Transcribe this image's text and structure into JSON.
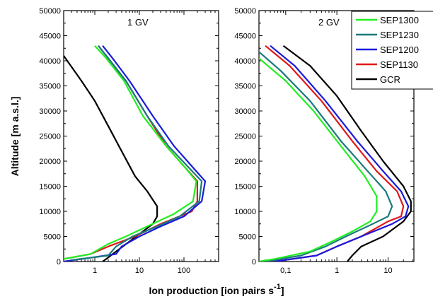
{
  "chart_data": {
    "type": "line",
    "xlabel": "Ion production [ion pairs s",
    "xlabel_sup": "-1",
    "xlabel_end": "]",
    "ylabel": "Altitude [m a.s.l.]",
    "ylim": [
      0,
      50000
    ],
    "yticks": [
      "0",
      "5000",
      "10000",
      "15000",
      "20000",
      "25000",
      "30000",
      "35000",
      "40000",
      "45000",
      "50000"
    ],
    "legend_position": "top-right",
    "colors": {
      "SEP1300": "#22ee22",
      "SEP1230": "#1a7a7a",
      "SEP1200": "#1a1adc",
      "SEP1130": "#e01818",
      "GCR": "#000000"
    },
    "series_names": [
      "SEP1300",
      "SEP1230",
      "SEP1200",
      "SEP1130",
      "GCR"
    ],
    "panels": [
      {
        "label": "1 GV",
        "x_scale": "log",
        "xlim": [
          0.2,
          600
        ],
        "xticks": [
          "1",
          "10",
          "100"
        ],
        "series": [
          {
            "name": "GCR",
            "points": [
              [
                0.2,
                41000
              ],
              [
                0.5,
                36000
              ],
              [
                1,
                32000
              ],
              [
                2,
                27000
              ],
              [
                4,
                22000
              ],
              [
                8,
                17000
              ],
              [
                15,
                14000
              ],
              [
                25,
                11000
              ],
              [
                25,
                9000
              ],
              [
                20,
                7500
              ],
              [
                12,
                6000
              ],
              [
                6,
                4000
              ],
              [
                3,
                2000
              ],
              [
                2,
                800
              ],
              [
                1.5,
                0
              ]
            ]
          },
          {
            "name": "SEP1130",
            "points": [
              [
                1.2,
                43000
              ],
              [
                2,
                40500
              ],
              [
                5,
                36000
              ],
              [
                15,
                29000
              ],
              [
                40,
                23000
              ],
              [
                100,
                19000
              ],
              [
                200,
                16000
              ],
              [
                200,
                12000
              ],
              [
                150,
                10000
              ],
              [
                30,
                7500
              ],
              [
                8,
                5000
              ],
              [
                2,
                3000
              ],
              [
                0.8,
                1500
              ],
              [
                0.2,
                500
              ]
            ]
          },
          {
            "name": "SEP1200",
            "points": [
              [
                1.5,
                43000
              ],
              [
                2.5,
                40500
              ],
              [
                6,
                36000
              ],
              [
                20,
                29000
              ],
              [
                60,
                23000
              ],
              [
                150,
                19000
              ],
              [
                300,
                16000
              ],
              [
                250,
                12000
              ],
              [
                100,
                9000
              ],
              [
                30,
                7000
              ],
              [
                10,
                5000
              ],
              [
                4,
                3000
              ],
              [
                3,
                1500
              ],
              [
                0.2,
                0
              ]
            ]
          },
          {
            "name": "SEP1230",
            "points": [
              [
                1.2,
                43000
              ],
              [
                2,
                40500
              ],
              [
                5,
                36000
              ],
              [
                15,
                29000
              ],
              [
                45,
                23000
              ],
              [
                120,
                19000
              ],
              [
                250,
                16000
              ],
              [
                220,
                12000
              ],
              [
                80,
                9000
              ],
              [
                25,
                7000
              ],
              [
                7,
                5000
              ],
              [
                3,
                3000
              ],
              [
                2,
                1200
              ],
              [
                0.3,
                300
              ]
            ]
          },
          {
            "name": "SEP1300",
            "points": [
              [
                1,
                43000
              ],
              [
                1.8,
                40500
              ],
              [
                4.5,
                36000
              ],
              [
                12,
                29000
              ],
              [
                40,
                23000
              ],
              [
                100,
                19000
              ],
              [
                190,
                16000
              ],
              [
                160,
                12000
              ],
              [
                60,
                9500
              ],
              [
                15,
                7000
              ],
              [
                5,
                5000
              ],
              [
                2,
                3500
              ],
              [
                0.8,
                1500
              ],
              [
                0.2,
                500
              ]
            ]
          }
        ]
      },
      {
        "label": "2 GV",
        "x_scale": "log",
        "xlim": [
          0.03,
          32
        ],
        "xticks": [
          "0,1",
          "1",
          "10"
        ],
        "series": [
          {
            "name": "GCR",
            "points": [
              [
                0.09,
                43000
              ],
              [
                0.3,
                39000
              ],
              [
                1,
                33000
              ],
              [
                3,
                26000
              ],
              [
                8,
                20000
              ],
              [
                20,
                15000
              ],
              [
                28,
                12000
              ],
              [
                28,
                10000
              ],
              [
                20,
                8000
              ],
              [
                8,
                5000
              ],
              [
                3,
                3000
              ],
              [
                2,
                1200
              ],
              [
                1.6,
                0
              ]
            ]
          },
          {
            "name": "SEP1130",
            "points": [
              [
                0.04,
                43000
              ],
              [
                0.12,
                39000
              ],
              [
                0.5,
                32000
              ],
              [
                2,
                24000
              ],
              [
                6,
                18000
              ],
              [
                15,
                14000
              ],
              [
                20,
                11000
              ],
              [
                18,
                9000
              ],
              [
                10,
                8000
              ],
              [
                3,
                5000
              ],
              [
                1,
                3000
              ],
              [
                0.4,
                1200
              ],
              [
                0.06,
                0
              ]
            ]
          },
          {
            "name": "SEP1200",
            "points": [
              [
                0.05,
                43000
              ],
              [
                0.15,
                39000
              ],
              [
                0.6,
                32000
              ],
              [
                2.5,
                24000
              ],
              [
                8,
                18000
              ],
              [
                18,
                14000
              ],
              [
                25,
                11000
              ],
              [
                22,
                9000
              ],
              [
                12,
                7500
              ],
              [
                3,
                5000
              ],
              [
                1,
                3000
              ],
              [
                0.4,
                1200
              ],
              [
                0.06,
                0
              ]
            ]
          },
          {
            "name": "SEP1230",
            "points": [
              [
                0.025,
                42500
              ],
              [
                0.08,
                38000
              ],
              [
                0.3,
                32000
              ],
              [
                1.2,
                24000
              ],
              [
                4,
                18000
              ],
              [
                9,
                14000
              ],
              [
                12,
                11000
              ],
              [
                10,
                9000
              ],
              [
                5,
                7500
              ],
              [
                1.5,
                5000
              ],
              [
                0.6,
                3000
              ],
              [
                0.2,
                1200
              ],
              [
                0.04,
                0
              ]
            ]
          },
          {
            "name": "SEP1300",
            "points": [
              [
                0.03,
                40500
              ],
              [
                0.1,
                36000
              ],
              [
                0.35,
                30000
              ],
              [
                1.2,
                23000
              ],
              [
                3.5,
                17000
              ],
              [
                6,
                13000
              ],
              [
                6,
                10000
              ],
              [
                4.5,
                8000
              ],
              [
                2,
                6000
              ],
              [
                0.8,
                4000
              ],
              [
                0.3,
                2000
              ],
              [
                0.06,
                500
              ],
              [
                0.03,
                0
              ]
            ]
          }
        ]
      }
    ]
  }
}
